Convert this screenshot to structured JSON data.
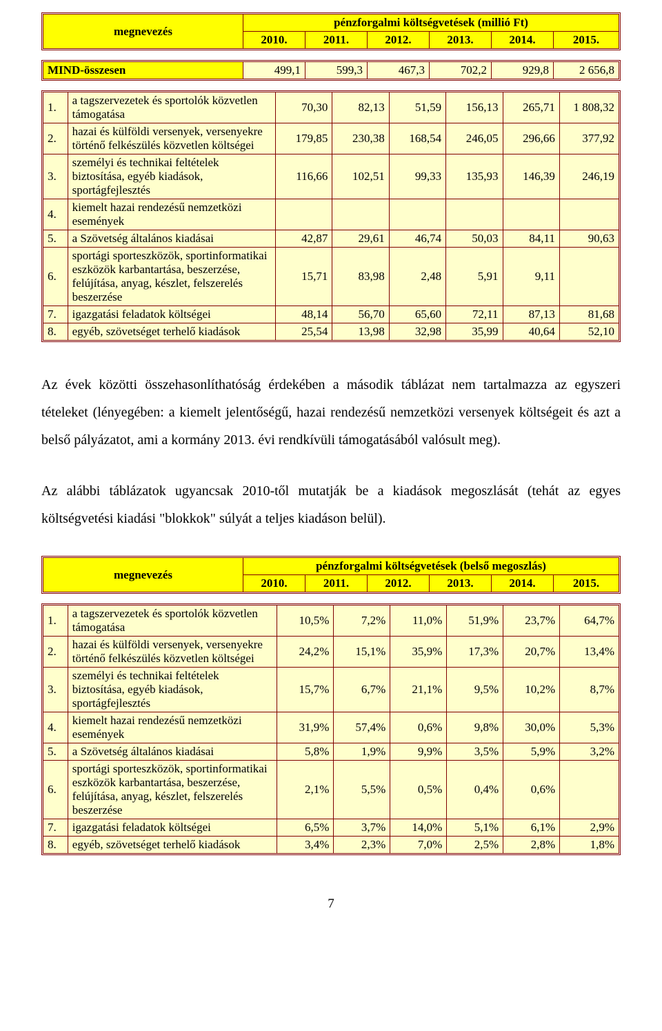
{
  "colors": {
    "border": "#800000",
    "header_bg": "#ffff00",
    "body_bg": "#ffffcc",
    "text": "#000000"
  },
  "fonts": {
    "family": "Times New Roman",
    "table_size_pt": 13,
    "paragraph_size_pt": 15
  },
  "header1": {
    "label": "megnevezés",
    "title": "pénzforgalmi költségvetések (millió Ft)",
    "years": [
      "2010.",
      "2011.",
      "2012.",
      "2013.",
      "2014.",
      "2015."
    ]
  },
  "mind_row": {
    "label": "MIND-összesen",
    "values": [
      "499,1",
      "599,3",
      "467,3",
      "702,2",
      "929,8",
      "2 656,8"
    ]
  },
  "table1": {
    "rows": [
      {
        "n": "1.",
        "desc": "a tagszervezetek és sportolók közvetlen támogatása",
        "v": [
          "70,30",
          "82,13",
          "51,59",
          "156,13",
          "265,71",
          "1 808,32"
        ]
      },
      {
        "n": "2.",
        "desc": "hazai és külföldi versenyek, versenyekre történő felkészülés közvetlen költségei",
        "v": [
          "179,85",
          "230,38",
          "168,54",
          "246,05",
          "296,66",
          "377,92"
        ]
      },
      {
        "n": "3.",
        "desc": "személyi és technikai feltételek biztosítása, egyéb kiadások, sportágfejlesztés",
        "v": [
          "116,66",
          "102,51",
          "99,33",
          "135,93",
          "146,39",
          "246,19"
        ]
      },
      {
        "n": "4.",
        "desc": "kiemelt hazai rendezésű nemzetközi események",
        "v": [
          "",
          "",
          "",
          "",
          "",
          ""
        ]
      },
      {
        "n": "5.",
        "desc": "a Szövetség általános kiadásai",
        "v": [
          "42,87",
          "29,61",
          "46,74",
          "50,03",
          "84,11",
          "90,63"
        ]
      },
      {
        "n": "6.",
        "desc": "sportági sporteszközök, sportinformatikai eszközök karbantartása, beszerzése, felújítása, anyag, készlet, felszerelés beszerzése",
        "v": [
          "15,71",
          "83,98",
          "2,48",
          "5,91",
          "9,11",
          ""
        ]
      },
      {
        "n": "7.",
        "desc": "igazgatási feladatok költségei",
        "v": [
          "48,14",
          "56,70",
          "65,60",
          "72,11",
          "87,13",
          "81,68"
        ]
      },
      {
        "n": "8.",
        "desc": "egyéb, szövetséget terhelő kiadások",
        "v": [
          "25,54",
          "13,98",
          "32,98",
          "35,99",
          "40,64",
          "52,10"
        ]
      }
    ]
  },
  "paragraph1": "Az évek közötti összehasonlíthatóság érdekében a második táblázat nem tartalmazza az egyszeri tételeket (lényegében: a kiemelt jelentőségű, hazai rendezésű nemzetközi versenyek költségeit és azt a belső pályázatot, ami a kormány 2013. évi rendkívüli támogatásából valósult meg).",
  "paragraph2": "Az alábbi táblázatok ugyancsak 2010-től mutatják be a kiadások megoszlását (tehát az egyes költségvetési kiadási \"blokkok\" súlyát a teljes kiadáson belül).",
  "header2": {
    "label": "megnevezés",
    "title": "pénzforgalmi költségvetések (belső megoszlás)",
    "years": [
      "2010.",
      "2011.",
      "2012.",
      "2013.",
      "2014.",
      "2015."
    ]
  },
  "table2": {
    "rows": [
      {
        "n": "1.",
        "desc": "a tagszervezetek és sportolók közvetlen támogatása",
        "v": [
          "10,5%",
          "7,2%",
          "11,0%",
          "51,9%",
          "23,7%",
          "64,7%"
        ]
      },
      {
        "n": "2.",
        "desc": "hazai és külföldi versenyek, versenyekre történő felkészülés közvetlen költségei",
        "v": [
          "24,2%",
          "15,1%",
          "35,9%",
          "17,3%",
          "20,7%",
          "13,4%"
        ]
      },
      {
        "n": "3.",
        "desc": "személyi és technikai feltételek biztosítása, egyéb kiadások, sportágfejlesztés",
        "v": [
          "15,7%",
          "6,7%",
          "21,1%",
          "9,5%",
          "10,2%",
          "8,7%"
        ]
      },
      {
        "n": "4.",
        "desc": "kiemelt hazai rendezésű nemzetközi események",
        "v": [
          "31,9%",
          "57,4%",
          "0,6%",
          "9,8%",
          "30,0%",
          "5,3%"
        ]
      },
      {
        "n": "5.",
        "desc": "a Szövetség általános kiadásai",
        "v": [
          "5,8%",
          "1,9%",
          "9,9%",
          "3,5%",
          "5,9%",
          "3,2%"
        ]
      },
      {
        "n": "6.",
        "desc": "sportági sporteszközök, sportinformatikai eszközök karbantartása, beszerzése, felújítása, anyag, készlet, felszerelés beszerzése",
        "v": [
          "2,1%",
          "5,5%",
          "0,5%",
          "0,4%",
          "0,6%",
          ""
        ]
      },
      {
        "n": "7.",
        "desc": "igazgatási feladatok költségei",
        "v": [
          "6,5%",
          "3,7%",
          "14,0%",
          "5,1%",
          "6,1%",
          "2,9%"
        ]
      },
      {
        "n": "8.",
        "desc": "egyéb, szövetséget terhelő kiadások",
        "v": [
          "3,4%",
          "2,3%",
          "7,0%",
          "2,5%",
          "2,8%",
          "1,8%"
        ]
      }
    ]
  },
  "page_number": "7"
}
